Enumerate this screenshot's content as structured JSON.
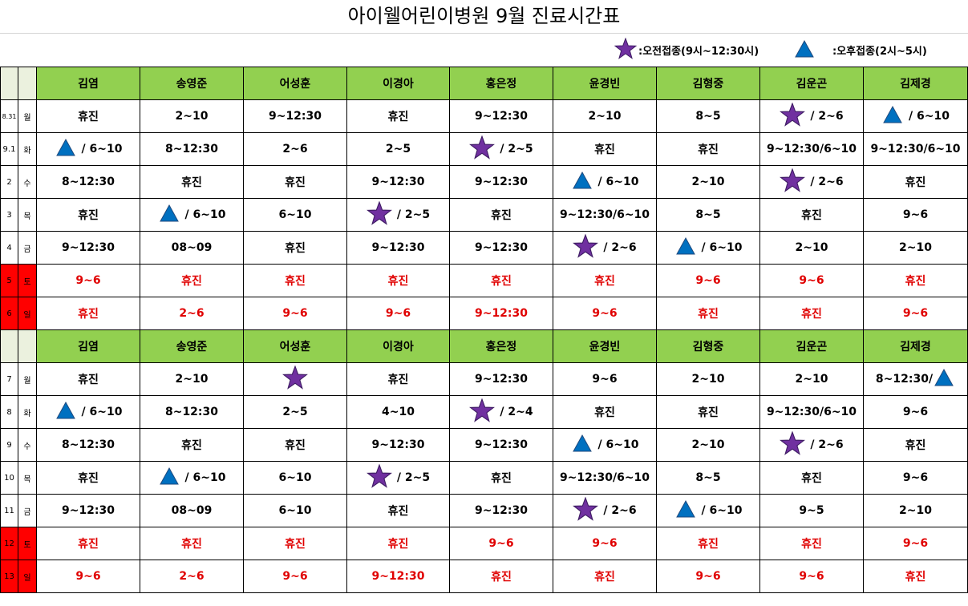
{
  "title": "아이웰어린이병원 9월 진료시간표",
  "legend": {
    "am": {
      "icon": "star-icon",
      "text": ":오전접종(9시~12:30시)"
    },
    "pm": {
      "icon": "triangle-icon",
      "text": ":오후접종(2시~5시)"
    }
  },
  "colors": {
    "header_bg": "#92d050",
    "weekend_text": "#e00000",
    "weekend_date_bg": "#ff0000",
    "star": "#7030a0",
    "triangle": "#0070c0"
  },
  "doctors": [
    "김염",
    "송영준",
    "어성훈",
    "이경아",
    "홍은정",
    "윤경빈",
    "김형중",
    "김운곤",
    "김제경"
  ],
  "weeks": [
    {
      "rows": [
        {
          "date": "8.31",
          "day": "월",
          "weekend": false,
          "cells": [
            {
              "text": "휴진"
            },
            {
              "text": "2~10"
            },
            {
              "text": "9~12:30"
            },
            {
              "text": "휴진"
            },
            {
              "text": "9~12:30"
            },
            {
              "text": "2~10"
            },
            {
              "text": "8~5"
            },
            {
              "icon": "star",
              "text": "/ 2~6"
            },
            {
              "icon": "triangle",
              "text": "/ 6~10"
            }
          ]
        },
        {
          "date": "9.1",
          "day": "화",
          "weekend": false,
          "cells": [
            {
              "icon": "triangle",
              "text": "/ 6~10"
            },
            {
              "text": "8~12:30"
            },
            {
              "text": "2~6"
            },
            {
              "text": "2~5"
            },
            {
              "icon": "star",
              "text": "/ 2~5"
            },
            {
              "text": "휴진"
            },
            {
              "text": "휴진"
            },
            {
              "text": "9~12:30/6~10"
            },
            {
              "text": "9~12:30/6~10"
            }
          ]
        },
        {
          "date": "2",
          "day": "수",
          "weekend": false,
          "cells": [
            {
              "text": "8~12:30"
            },
            {
              "text": "휴진"
            },
            {
              "text": "휴진"
            },
            {
              "text": "9~12:30"
            },
            {
              "text": "9~12:30"
            },
            {
              "icon": "triangle",
              "text": "/ 6~10"
            },
            {
              "text": "2~10"
            },
            {
              "icon": "star",
              "text": "/ 2~6"
            },
            {
              "text": "휴진"
            }
          ]
        },
        {
          "date": "3",
          "day": "목",
          "weekend": false,
          "cells": [
            {
              "text": "휴진"
            },
            {
              "icon": "triangle",
              "text": "/ 6~10"
            },
            {
              "text": "6~10"
            },
            {
              "icon": "star",
              "text": "/ 2~5"
            },
            {
              "text": "휴진"
            },
            {
              "text": "9~12:30/6~10"
            },
            {
              "text": "8~5"
            },
            {
              "text": "휴진"
            },
            {
              "text": "9~6"
            }
          ]
        },
        {
          "date": "4",
          "day": "금",
          "weekend": false,
          "cells": [
            {
              "text": "9~12:30"
            },
            {
              "text": "08~09"
            },
            {
              "text": "휴진"
            },
            {
              "text": "9~12:30"
            },
            {
              "text": "9~12:30"
            },
            {
              "icon": "star",
              "text": "/ 2~6"
            },
            {
              "icon": "triangle",
              "text": "/ 6~10"
            },
            {
              "text": "2~10"
            },
            {
              "text": "2~10"
            }
          ]
        },
        {
          "date": "5",
          "day": "토",
          "weekend": true,
          "cells": [
            {
              "text": "9~6"
            },
            {
              "text": "휴진"
            },
            {
              "text": "휴진"
            },
            {
              "text": "휴진"
            },
            {
              "text": "휴진"
            },
            {
              "text": "휴진"
            },
            {
              "text": "9~6"
            },
            {
              "text": "9~6"
            },
            {
              "text": "휴진"
            }
          ]
        },
        {
          "date": "6",
          "day": "일",
          "weekend": true,
          "cells": [
            {
              "text": "휴진"
            },
            {
              "text": "2~6"
            },
            {
              "text": "9~6"
            },
            {
              "text": "9~6"
            },
            {
              "text": "9~12:30"
            },
            {
              "text": "9~6"
            },
            {
              "text": "휴진"
            },
            {
              "text": "휴진"
            },
            {
              "text": "9~6"
            }
          ]
        }
      ]
    },
    {
      "rows": [
        {
          "date": "7",
          "day": "월",
          "weekend": false,
          "cells": [
            {
              "text": "휴진"
            },
            {
              "text": "2~10"
            },
            {
              "icon": "star",
              "text": ""
            },
            {
              "text": "휴진"
            },
            {
              "text": "9~12:30"
            },
            {
              "text": "9~6"
            },
            {
              "text": "2~10"
            },
            {
              "text": "2~10"
            },
            {
              "text": "8~12:30/",
              "icon_after": "triangle"
            }
          ]
        },
        {
          "date": "8",
          "day": "화",
          "weekend": false,
          "cells": [
            {
              "icon": "triangle",
              "text": "/ 6~10"
            },
            {
              "text": "8~12:30"
            },
            {
              "text": "2~5"
            },
            {
              "text": "4~10"
            },
            {
              "icon": "star",
              "text": "/ 2~4"
            },
            {
              "text": "휴진"
            },
            {
              "text": "휴진"
            },
            {
              "text": "9~12:30/6~10"
            },
            {
              "text": "9~6"
            }
          ]
        },
        {
          "date": "9",
          "day": "수",
          "weekend": false,
          "cells": [
            {
              "text": "8~12:30"
            },
            {
              "text": "휴진"
            },
            {
              "text": "휴진"
            },
            {
              "text": "9~12:30"
            },
            {
              "text": "9~12:30"
            },
            {
              "icon": "triangle",
              "text": "/ 6~10"
            },
            {
              "text": "2~10"
            },
            {
              "icon": "star",
              "text": "/ 2~6"
            },
            {
              "text": "휴진"
            }
          ]
        },
        {
          "date": "10",
          "day": "목",
          "weekend": false,
          "cells": [
            {
              "text": "휴진"
            },
            {
              "icon": "triangle",
              "text": "/ 6~10"
            },
            {
              "text": "6~10"
            },
            {
              "icon": "star",
              "text": "/ 2~5"
            },
            {
              "text": "휴진"
            },
            {
              "text": "9~12:30/6~10"
            },
            {
              "text": "8~5"
            },
            {
              "text": "휴진"
            },
            {
              "text": "9~6"
            }
          ]
        },
        {
          "date": "11",
          "day": "금",
          "weekend": false,
          "cells": [
            {
              "text": "9~12:30"
            },
            {
              "text": "08~09"
            },
            {
              "text": "6~10"
            },
            {
              "text": "휴진"
            },
            {
              "text": "9~12:30"
            },
            {
              "icon": "star",
              "text": "/ 2~6"
            },
            {
              "icon": "triangle",
              "text": "/ 6~10"
            },
            {
              "text": "9~5"
            },
            {
              "text": "2~10"
            }
          ]
        },
        {
          "date": "12",
          "day": "토",
          "weekend": true,
          "cells": [
            {
              "text": "휴진"
            },
            {
              "text": "휴진"
            },
            {
              "text": "휴진"
            },
            {
              "text": "휴진"
            },
            {
              "text": "9~6"
            },
            {
              "text": "9~6"
            },
            {
              "text": "휴진"
            },
            {
              "text": "휴진"
            },
            {
              "text": "9~6"
            }
          ]
        },
        {
          "date": "13",
          "day": "일",
          "weekend": true,
          "cells": [
            {
              "text": "9~6"
            },
            {
              "text": "2~6"
            },
            {
              "text": "9~6"
            },
            {
              "text": "9~12:30"
            },
            {
              "text": "휴진"
            },
            {
              "text": "휴진"
            },
            {
              "text": "9~6"
            },
            {
              "text": "9~6"
            },
            {
              "text": "휴진"
            }
          ]
        }
      ]
    }
  ]
}
